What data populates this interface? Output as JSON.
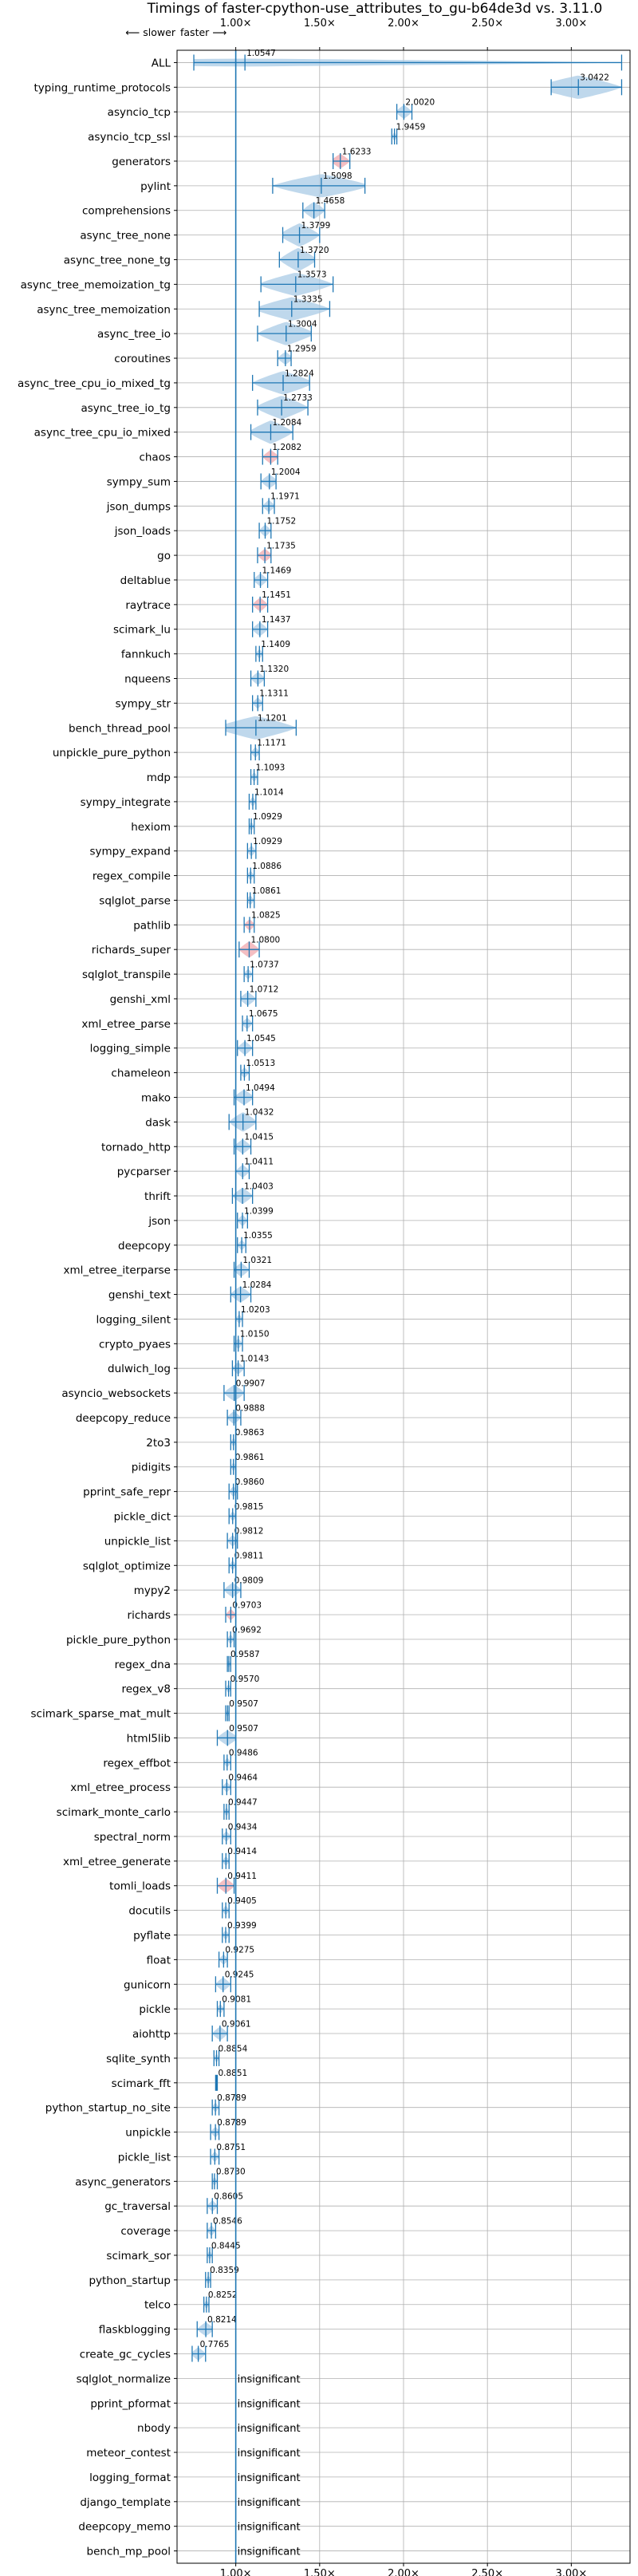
{
  "chart_data": {
    "type": "violin",
    "title": "Timings of faster-cpython-use_attributes_to_gu-b64de3d vs. 3.11.0",
    "direction_labels": {
      "slower": "⟵ slower",
      "faster": "faster ⟶"
    },
    "xlim": [
      0.65,
      3.35
    ],
    "xticks": [
      1.0,
      1.5,
      2.0,
      2.5,
      3.0
    ],
    "xtick_labels": [
      "1.00×",
      "1.50×",
      "2.00×",
      "2.50×",
      "3.00×"
    ],
    "reference_line": 1.0,
    "grid": true,
    "colors": {
      "violin": "#a9cbe6",
      "violin_slow": "#f0a8ae",
      "marker": "#1f77b4",
      "ref_line": "#1f77b4",
      "grid": "#b0b0b0"
    },
    "insignificant_text": "insignificant",
    "benchmarks": [
      {
        "name": "ALL",
        "value": 1.0547,
        "lo": 0.75,
        "hi": 3.3,
        "label": "1.0547"
      },
      {
        "name": "typing_runtime_protocols",
        "value": 3.0422,
        "lo": 2.88,
        "hi": 3.3,
        "label": "3.0422"
      },
      {
        "name": "asyncio_tcp",
        "value": 2.002,
        "lo": 1.96,
        "hi": 2.05,
        "label": "2.0020"
      },
      {
        "name": "asyncio_tcp_ssl",
        "value": 1.9459,
        "lo": 1.93,
        "hi": 1.96,
        "label": "1.9459"
      },
      {
        "name": "generators",
        "value": 1.6233,
        "lo": 1.58,
        "hi": 1.68,
        "label": "1.6233"
      },
      {
        "name": "pylint",
        "value": 1.5098,
        "lo": 1.22,
        "hi": 1.77,
        "label": "1.5098"
      },
      {
        "name": "comprehensions",
        "value": 1.4658,
        "lo": 1.4,
        "hi": 1.53,
        "label": "1.4658"
      },
      {
        "name": "async_tree_none",
        "value": 1.3799,
        "lo": 1.28,
        "hi": 1.5,
        "label": "1.3799"
      },
      {
        "name": "async_tree_none_tg",
        "value": 1.372,
        "lo": 1.26,
        "hi": 1.47,
        "label": "1.3720"
      },
      {
        "name": "async_tree_memoization_tg",
        "value": 1.3573,
        "lo": 1.15,
        "hi": 1.58,
        "label": "1.3573"
      },
      {
        "name": "async_tree_memoization",
        "value": 1.3335,
        "lo": 1.14,
        "hi": 1.56,
        "label": "1.3335"
      },
      {
        "name": "async_tree_io",
        "value": 1.3004,
        "lo": 1.13,
        "hi": 1.45,
        "label": "1.3004"
      },
      {
        "name": "coroutines",
        "value": 1.2959,
        "lo": 1.25,
        "hi": 1.33,
        "label": "1.2959"
      },
      {
        "name": "async_tree_cpu_io_mixed_tg",
        "value": 1.2824,
        "lo": 1.1,
        "hi": 1.44,
        "label": "1.2824"
      },
      {
        "name": "async_tree_io_tg",
        "value": 1.2733,
        "lo": 1.13,
        "hi": 1.43,
        "label": "1.2733"
      },
      {
        "name": "async_tree_cpu_io_mixed",
        "value": 1.2084,
        "lo": 1.09,
        "hi": 1.34,
        "label": "1.2084"
      },
      {
        "name": "chaos",
        "value": 1.2082,
        "lo": 1.16,
        "hi": 1.25,
        "label": "1.2082"
      },
      {
        "name": "sympy_sum",
        "value": 1.2004,
        "lo": 1.15,
        "hi": 1.24,
        "label": "1.2004"
      },
      {
        "name": "json_dumps",
        "value": 1.1971,
        "lo": 1.16,
        "hi": 1.23,
        "label": "1.1971"
      },
      {
        "name": "json_loads",
        "value": 1.1752,
        "lo": 1.14,
        "hi": 1.21,
        "label": "1.1752"
      },
      {
        "name": "go",
        "value": 1.1735,
        "lo": 1.13,
        "hi": 1.21,
        "label": "1.1735"
      },
      {
        "name": "deltablue",
        "value": 1.1469,
        "lo": 1.11,
        "hi": 1.19,
        "label": "1.1469"
      },
      {
        "name": "raytrace",
        "value": 1.1451,
        "lo": 1.1,
        "hi": 1.19,
        "label": "1.1451"
      },
      {
        "name": "scimark_lu",
        "value": 1.1437,
        "lo": 1.1,
        "hi": 1.19,
        "label": "1.1437"
      },
      {
        "name": "fannkuch",
        "value": 1.1409,
        "lo": 1.12,
        "hi": 1.16,
        "label": "1.1409"
      },
      {
        "name": "nqueens",
        "value": 1.132,
        "lo": 1.09,
        "hi": 1.17,
        "label": "1.1320"
      },
      {
        "name": "sympy_str",
        "value": 1.1311,
        "lo": 1.1,
        "hi": 1.16,
        "label": "1.1311"
      },
      {
        "name": "bench_thread_pool",
        "value": 1.1201,
        "lo": 0.94,
        "hi": 1.36,
        "label": "1.1201"
      },
      {
        "name": "unpickle_pure_python",
        "value": 1.1171,
        "lo": 1.09,
        "hi": 1.14,
        "label": "1.1171"
      },
      {
        "name": "mdp",
        "value": 1.1093,
        "lo": 1.09,
        "hi": 1.13,
        "label": "1.1093"
      },
      {
        "name": "sympy_integrate",
        "value": 1.1014,
        "lo": 1.08,
        "hi": 1.12,
        "label": "1.1014"
      },
      {
        "name": "hexiom",
        "value": 1.0929,
        "lo": 1.08,
        "hi": 1.11,
        "label": "1.0929"
      },
      {
        "name": "sympy_expand",
        "value": 1.0929,
        "lo": 1.07,
        "hi": 1.12,
        "label": "1.0929"
      },
      {
        "name": "regex_compile",
        "value": 1.0886,
        "lo": 1.07,
        "hi": 1.11,
        "label": "1.0886"
      },
      {
        "name": "sqlglot_parse",
        "value": 1.0861,
        "lo": 1.07,
        "hi": 1.11,
        "label": "1.0861"
      },
      {
        "name": "pathlib",
        "value": 1.0825,
        "lo": 1.05,
        "hi": 1.11,
        "label": "1.0825"
      },
      {
        "name": "richards_super",
        "value": 1.08,
        "lo": 1.02,
        "hi": 1.14,
        "label": "1.0800"
      },
      {
        "name": "sqlglot_transpile",
        "value": 1.0737,
        "lo": 1.05,
        "hi": 1.1,
        "label": "1.0737"
      },
      {
        "name": "genshi_xml",
        "value": 1.0712,
        "lo": 1.03,
        "hi": 1.12,
        "label": "1.0712"
      },
      {
        "name": "xml_etree_parse",
        "value": 1.0675,
        "lo": 1.04,
        "hi": 1.1,
        "label": "1.0675"
      },
      {
        "name": "logging_simple",
        "value": 1.0545,
        "lo": 1.01,
        "hi": 1.1,
        "label": "1.0545"
      },
      {
        "name": "chameleon",
        "value": 1.0513,
        "lo": 1.03,
        "hi": 1.08,
        "label": "1.0513"
      },
      {
        "name": "mako",
        "value": 1.0494,
        "lo": 0.99,
        "hi": 1.1,
        "label": "1.0494"
      },
      {
        "name": "dask",
        "value": 1.0432,
        "lo": 0.96,
        "hi": 1.12,
        "label": "1.0432"
      },
      {
        "name": "tornado_http",
        "value": 1.0415,
        "lo": 0.99,
        "hi": 1.09,
        "label": "1.0415"
      },
      {
        "name": "pycparser",
        "value": 1.0411,
        "lo": 1.0,
        "hi": 1.08,
        "label": "1.0411"
      },
      {
        "name": "thrift",
        "value": 1.0403,
        "lo": 0.98,
        "hi": 1.1,
        "label": "1.0403"
      },
      {
        "name": "json",
        "value": 1.0399,
        "lo": 1.01,
        "hi": 1.07,
        "label": "1.0399"
      },
      {
        "name": "deepcopy",
        "value": 1.0355,
        "lo": 1.01,
        "hi": 1.06,
        "label": "1.0355"
      },
      {
        "name": "xml_etree_iterparse",
        "value": 1.0321,
        "lo": 0.99,
        "hi": 1.08,
        "label": "1.0321"
      },
      {
        "name": "genshi_text",
        "value": 1.0284,
        "lo": 0.97,
        "hi": 1.09,
        "label": "1.0284"
      },
      {
        "name": "logging_silent",
        "value": 1.0203,
        "lo": 1.0,
        "hi": 1.04,
        "label": "1.0203"
      },
      {
        "name": "crypto_pyaes",
        "value": 1.015,
        "lo": 0.99,
        "hi": 1.04,
        "label": "1.0150"
      },
      {
        "name": "dulwich_log",
        "value": 1.0143,
        "lo": 0.98,
        "hi": 1.05,
        "label": "1.0143"
      },
      {
        "name": "asyncio_websockets",
        "value": 0.9907,
        "lo": 0.93,
        "hi": 1.05,
        "label": "0.9907"
      },
      {
        "name": "deepcopy_reduce",
        "value": 0.9888,
        "lo": 0.95,
        "hi": 1.03,
        "label": "0.9888"
      },
      {
        "name": "2to3",
        "value": 0.9863,
        "lo": 0.97,
        "hi": 1.0,
        "label": "0.9863"
      },
      {
        "name": "pidigits",
        "value": 0.9861,
        "lo": 0.97,
        "hi": 1.0,
        "label": "0.9861"
      },
      {
        "name": "pprint_safe_repr",
        "value": 0.986,
        "lo": 0.96,
        "hi": 1.01,
        "label": "0.9860"
      },
      {
        "name": "pickle_dict",
        "value": 0.9815,
        "lo": 0.96,
        "hi": 1.0,
        "label": "0.9815"
      },
      {
        "name": "unpickle_list",
        "value": 0.9812,
        "lo": 0.95,
        "hi": 1.01,
        "label": "0.9812"
      },
      {
        "name": "sqlglot_optimize",
        "value": 0.9811,
        "lo": 0.96,
        "hi": 1.0,
        "label": "0.9811"
      },
      {
        "name": "mypy2",
        "value": 0.9809,
        "lo": 0.93,
        "hi": 1.03,
        "label": "0.9809"
      },
      {
        "name": "richards",
        "value": 0.9703,
        "lo": 0.94,
        "hi": 1.0,
        "label": "0.9703"
      },
      {
        "name": "pickle_pure_python",
        "value": 0.9692,
        "lo": 0.95,
        "hi": 0.99,
        "label": "0.9692"
      },
      {
        "name": "regex_dna",
        "value": 0.9587,
        "lo": 0.95,
        "hi": 0.97,
        "label": "0.9587"
      },
      {
        "name": "regex_v8",
        "value": 0.957,
        "lo": 0.94,
        "hi": 0.97,
        "label": "0.9570"
      },
      {
        "name": "scimark_sparse_mat_mult",
        "value": 0.9507,
        "lo": 0.94,
        "hi": 0.96,
        "label": "0.9507"
      },
      {
        "name": "html5lib",
        "value": 0.9507,
        "lo": 0.89,
        "hi": 1.0,
        "label": "0.9507"
      },
      {
        "name": "regex_effbot",
        "value": 0.9486,
        "lo": 0.93,
        "hi": 0.97,
        "label": "0.9486"
      },
      {
        "name": "xml_etree_process",
        "value": 0.9464,
        "lo": 0.92,
        "hi": 0.97,
        "label": "0.9464"
      },
      {
        "name": "scimark_monte_carlo",
        "value": 0.9447,
        "lo": 0.93,
        "hi": 0.96,
        "label": "0.9447"
      },
      {
        "name": "spectral_norm",
        "value": 0.9434,
        "lo": 0.92,
        "hi": 0.97,
        "label": "0.9434"
      },
      {
        "name": "xml_etree_generate",
        "value": 0.9414,
        "lo": 0.92,
        "hi": 0.96,
        "label": "0.9414"
      },
      {
        "name": "tomli_loads",
        "value": 0.9411,
        "lo": 0.89,
        "hi": 0.99,
        "label": "0.9411"
      },
      {
        "name": "docutils",
        "value": 0.9405,
        "lo": 0.92,
        "hi": 0.96,
        "label": "0.9405"
      },
      {
        "name": "pyflate",
        "value": 0.9399,
        "lo": 0.92,
        "hi": 0.96,
        "label": "0.9399"
      },
      {
        "name": "float",
        "value": 0.9275,
        "lo": 0.9,
        "hi": 0.95,
        "label": "0.9275"
      },
      {
        "name": "gunicorn",
        "value": 0.9245,
        "lo": 0.88,
        "hi": 0.97,
        "label": "0.9245"
      },
      {
        "name": "pickle",
        "value": 0.9081,
        "lo": 0.89,
        "hi": 0.93,
        "label": "0.9081"
      },
      {
        "name": "aiohttp",
        "value": 0.9061,
        "lo": 0.86,
        "hi": 0.95,
        "label": "0.9061"
      },
      {
        "name": "sqlite_synth",
        "value": 0.8854,
        "lo": 0.87,
        "hi": 0.9,
        "label": "0.8854"
      },
      {
        "name": "scimark_fft",
        "value": 0.8851,
        "lo": 0.88,
        "hi": 0.89,
        "label": "0.8851"
      },
      {
        "name": "python_startup_no_site",
        "value": 0.8789,
        "lo": 0.86,
        "hi": 0.9,
        "label": "0.8789"
      },
      {
        "name": "unpickle",
        "value": 0.8789,
        "lo": 0.85,
        "hi": 0.9,
        "label": "0.8789"
      },
      {
        "name": "pickle_list",
        "value": 0.8751,
        "lo": 0.85,
        "hi": 0.9,
        "label": "0.8751"
      },
      {
        "name": "async_generators",
        "value": 0.873,
        "lo": 0.86,
        "hi": 0.89,
        "label": "0.8730"
      },
      {
        "name": "gc_traversal",
        "value": 0.8605,
        "lo": 0.83,
        "hi": 0.89,
        "label": "0.8605"
      },
      {
        "name": "coverage",
        "value": 0.8546,
        "lo": 0.83,
        "hi": 0.88,
        "label": "0.8546"
      },
      {
        "name": "scimark_sor",
        "value": 0.8445,
        "lo": 0.83,
        "hi": 0.86,
        "label": "0.8445"
      },
      {
        "name": "python_startup",
        "value": 0.8359,
        "lo": 0.82,
        "hi": 0.85,
        "label": "0.8359"
      },
      {
        "name": "telco",
        "value": 0.8252,
        "lo": 0.81,
        "hi": 0.84,
        "label": "0.8252"
      },
      {
        "name": "flaskblogging",
        "value": 0.8214,
        "lo": 0.77,
        "hi": 0.86,
        "label": "0.8214"
      },
      {
        "name": "create_gc_cycles",
        "value": 0.7765,
        "lo": 0.74,
        "hi": 0.82,
        "label": "0.7765"
      },
      {
        "name": "sqlglot_normalize",
        "value": null,
        "label": "insignificant"
      },
      {
        "name": "pprint_pformat",
        "value": null,
        "label": "insignificant"
      },
      {
        "name": "nbody",
        "value": null,
        "label": "insignificant"
      },
      {
        "name": "meteor_contest",
        "value": null,
        "label": "insignificant"
      },
      {
        "name": "logging_format",
        "value": null,
        "label": "insignificant"
      },
      {
        "name": "django_template",
        "value": null,
        "label": "insignificant"
      },
      {
        "name": "deepcopy_memo",
        "value": null,
        "label": "insignificant"
      },
      {
        "name": "bench_mp_pool",
        "value": null,
        "label": "insignificant"
      }
    ]
  }
}
